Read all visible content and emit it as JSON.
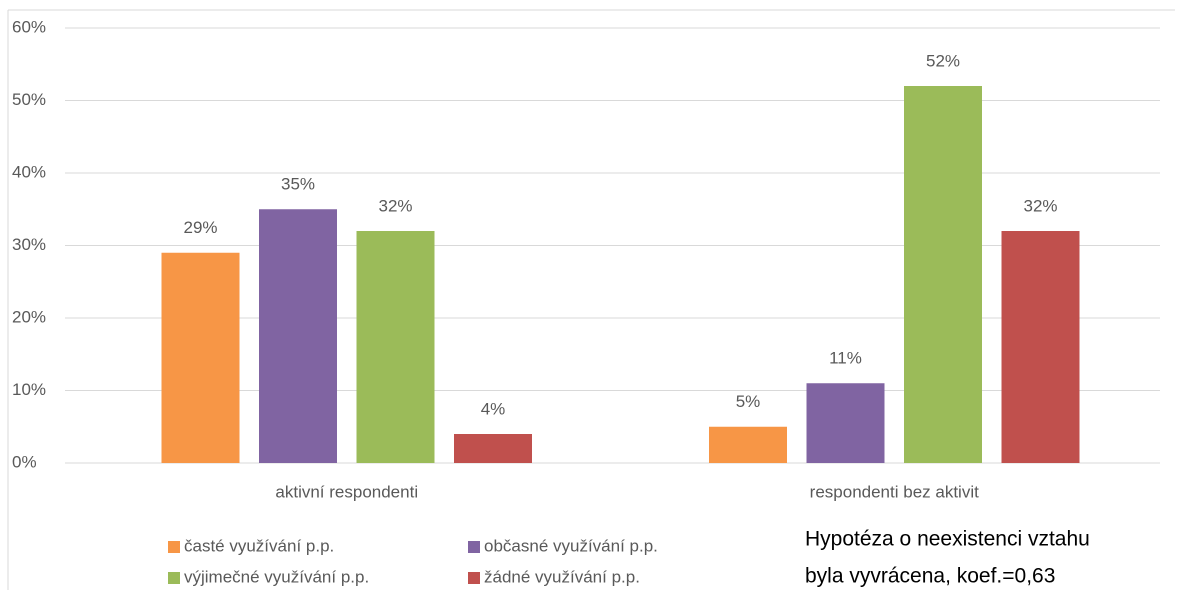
{
  "chart_data": {
    "type": "bar",
    "categories": [
      "aktivní respondenti",
      "respondenti bez aktivit"
    ],
    "series": [
      {
        "name": "časté využívání p.p.",
        "color": "#f79646",
        "values": [
          29,
          5
        ],
        "value_labels": [
          "29%",
          "5%"
        ]
      },
      {
        "name": "občasné využívání p.p.",
        "color": "#8064a2",
        "values": [
          35,
          11
        ],
        "value_labels": [
          "35%",
          "11%"
        ]
      },
      {
        "name": "výjimečné využívání p.p.",
        "color": "#9bbb59",
        "values": [
          32,
          52
        ],
        "value_labels": [
          "32%",
          "52%"
        ]
      },
      {
        "name": "žádné využívání p.p.",
        "color": "#c0504d",
        "values": [
          4,
          32
        ],
        "value_labels": [
          "4%",
          "32%"
        ]
      }
    ],
    "ylim": [
      0,
      60
    ],
    "yticks": [
      {
        "value": 0,
        "label": "0%"
      },
      {
        "value": 10,
        "label": "10%"
      },
      {
        "value": 20,
        "label": "20%"
      },
      {
        "value": 30,
        "label": "30%"
      },
      {
        "value": 40,
        "label": "40%"
      },
      {
        "value": 50,
        "label": "50%"
      },
      {
        "value": 60,
        "label": "60%"
      }
    ],
    "grid": true,
    "legend": "bottom",
    "annotation": [
      "Hypotéza o neexistenci vztahu",
      "byla vyvrácena, koef.=0,63"
    ]
  }
}
